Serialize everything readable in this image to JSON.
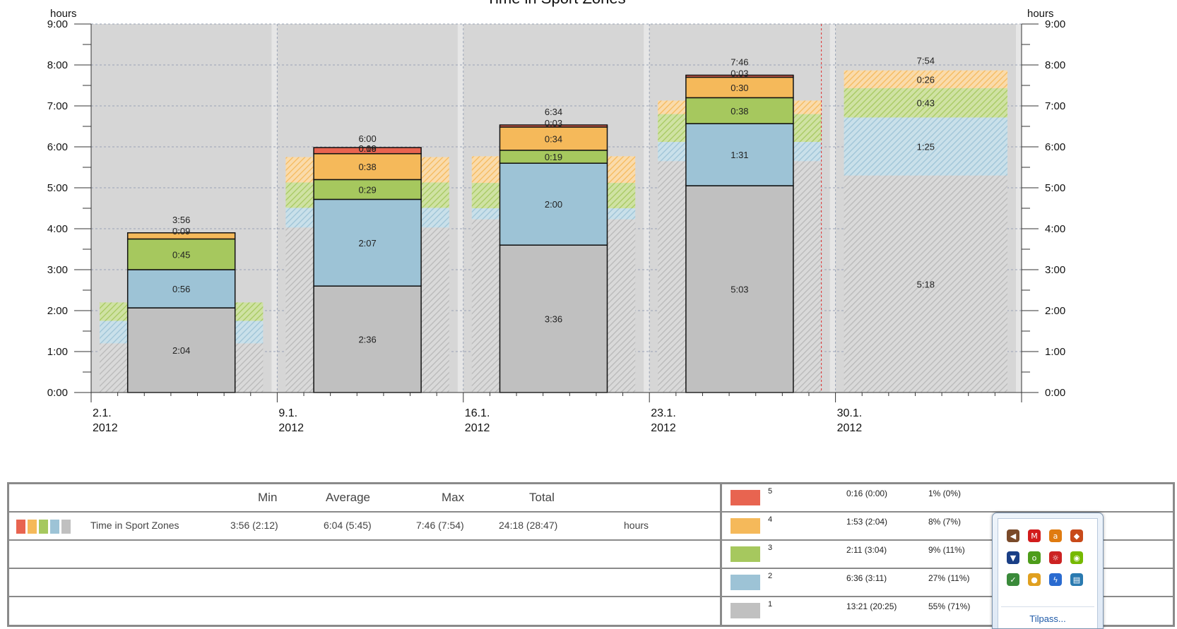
{
  "chart_data": {
    "type": "bar",
    "title": "Time in Sport Zones",
    "ylabel_left": "hours",
    "ylabel_right": "hours",
    "y_tick_labels": [
      "0:00",
      "1:00",
      "2:00",
      "3:00",
      "4:00",
      "5:00",
      "6:00",
      "7:00",
      "8:00",
      "9:00"
    ],
    "ylim_hours": [
      0,
      9
    ],
    "x_week_labels": [
      {
        "day": "2.1.",
        "year": "2012"
      },
      {
        "day": "9.1.",
        "year": "2012"
      },
      {
        "day": "16.1.",
        "year": "2012"
      },
      {
        "day": "23.1.",
        "year": "2012"
      },
      {
        "day": "30.1.",
        "year": "2012"
      }
    ],
    "zones": [
      "1",
      "2",
      "3",
      "4",
      "5"
    ],
    "zone_colors": {
      "1": "#c0c0c0",
      "2": "#9dc3d6",
      "3": "#a6c85e",
      "4": "#f5b95a",
      "5": "#e86450"
    },
    "plot_background": "#d6d6d6",
    "weeks": [
      {
        "total_label": "3:56",
        "current": [
          {
            "zone": "1",
            "hours": 2.067,
            "label": "2:04"
          },
          {
            "zone": "2",
            "hours": 0.933,
            "label": "0:56"
          },
          {
            "zone": "3",
            "hours": 0.75,
            "label": "0:45"
          },
          {
            "zone": "4",
            "hours": 0.15,
            "label": "0:09"
          }
        ],
        "comparison": [
          {
            "zone": "1",
            "hours": 1.2
          },
          {
            "zone": "2",
            "hours": 0.55
          },
          {
            "zone": "3",
            "hours": 0.45
          }
        ]
      },
      {
        "total_label": "6:00",
        "top_overlap_label": "0:16",
        "top_overlap_label_2": "0:09",
        "current": [
          {
            "zone": "1",
            "hours": 2.6,
            "label": "2:36"
          },
          {
            "zone": "2",
            "hours": 2.117,
            "label": "2:07"
          },
          {
            "zone": "3",
            "hours": 0.483,
            "label": "0:29"
          },
          {
            "zone": "4",
            "hours": 0.633,
            "label": "0:38"
          },
          {
            "zone": "5",
            "hours": 0.15
          }
        ],
        "comparison": [
          {
            "zone": "1",
            "hours": 4.03
          },
          {
            "zone": "2",
            "hours": 0.48
          },
          {
            "zone": "3",
            "hours": 0.62
          },
          {
            "zone": "4",
            "hours": 0.62
          }
        ]
      },
      {
        "total_label": "6:34",
        "current": [
          {
            "zone": "1",
            "hours": 3.6,
            "label": "3:36"
          },
          {
            "zone": "2",
            "hours": 2.0,
            "label": "2:00"
          },
          {
            "zone": "3",
            "hours": 0.317,
            "label": "0:19"
          },
          {
            "zone": "4",
            "hours": 0.567,
            "label": "0:34"
          },
          {
            "zone": "5",
            "hours": 0.05,
            "label": "0:03"
          }
        ],
        "comparison": [
          {
            "zone": "1",
            "hours": 4.23
          },
          {
            "zone": "2",
            "hours": 0.27
          },
          {
            "zone": "3",
            "hours": 0.62
          },
          {
            "zone": "4",
            "hours": 0.65
          }
        ]
      },
      {
        "total_label": "7:46",
        "current": [
          {
            "zone": "1",
            "hours": 5.05,
            "label": "5:03"
          },
          {
            "zone": "2",
            "hours": 1.517,
            "label": "1:31"
          },
          {
            "zone": "3",
            "hours": 0.633,
            "label": "0:38"
          },
          {
            "zone": "4",
            "hours": 0.5,
            "label": "0:30"
          },
          {
            "zone": "5",
            "hours": 0.05,
            "label": "0:03"
          }
        ],
        "comparison": [
          {
            "zone": "1",
            "hours": 5.65
          },
          {
            "zone": "2",
            "hours": 0.47
          },
          {
            "zone": "3",
            "hours": 0.68
          },
          {
            "zone": "4",
            "hours": 0.33
          }
        ]
      },
      {
        "total_label": "7:54",
        "projected": true,
        "current": [
          {
            "zone": "1",
            "hours": 5.3,
            "label": "5:18"
          },
          {
            "zone": "2",
            "hours": 1.417,
            "label": "1:25"
          },
          {
            "zone": "3",
            "hours": 0.717,
            "label": "0:43"
          },
          {
            "zone": "4",
            "hours": 0.433,
            "label": "0:26"
          }
        ]
      }
    ],
    "current_time_marker_hours_into_range": 27.0
  },
  "summary": {
    "headers": {
      "min": "Min",
      "average": "Average",
      "max": "Max",
      "total": "Total"
    },
    "row": {
      "name": "Time in Sport Zones",
      "min": "3:56 (2:12)",
      "average": "6:04 (5:45)",
      "max": "7:46 (7:54)",
      "total": "24:18 (28:47)",
      "unit": "hours"
    },
    "zone_rows": [
      {
        "zone": "5",
        "time": "0:16 (0:00)",
        "percent": "1% (0%)"
      },
      {
        "zone": "4",
        "time": "1:53 (2:04)",
        "percent": "8% (7%)"
      },
      {
        "zone": "3",
        "time": "2:11 (3:04)",
        "percent": "9% (11%)"
      },
      {
        "zone": "2",
        "time": "6:36 (3:11)",
        "percent": "27% (11%)"
      },
      {
        "zone": "1",
        "time": "13:21 (20:25)",
        "percent": "55% (71%)"
      }
    ]
  },
  "tray": {
    "customize_label": "Tilpass...",
    "icons": [
      {
        "name": "speaker-icon",
        "color": "#7a4a2a",
        "glyph": "◀"
      },
      {
        "name": "mcafee-icon",
        "color": "#d21c1c",
        "glyph": "M"
      },
      {
        "name": "avast-icon",
        "color": "#e07b10",
        "glyph": "a"
      },
      {
        "name": "fox-icon",
        "color": "#c84a1a",
        "glyph": "◆"
      },
      {
        "name": "shield-icon",
        "color": "#1a3f86",
        "glyph": "▼"
      },
      {
        "name": "ovi-icon",
        "color": "#4d9c1a",
        "glyph": "o"
      },
      {
        "name": "adobe-icon",
        "color": "#cc2222",
        "glyph": "☼"
      },
      {
        "name": "nvidia-icon",
        "color": "#76b900",
        "glyph": "◉"
      },
      {
        "name": "usb-icon",
        "color": "#3a8a3a",
        "glyph": "✓"
      },
      {
        "name": "update-icon",
        "color": "#e0a020",
        "glyph": "●"
      },
      {
        "name": "power-icon",
        "color": "#2a6bd0",
        "glyph": "ϟ"
      },
      {
        "name": "window-icon",
        "color": "#2a7ab0",
        "glyph": "▤"
      }
    ]
  }
}
